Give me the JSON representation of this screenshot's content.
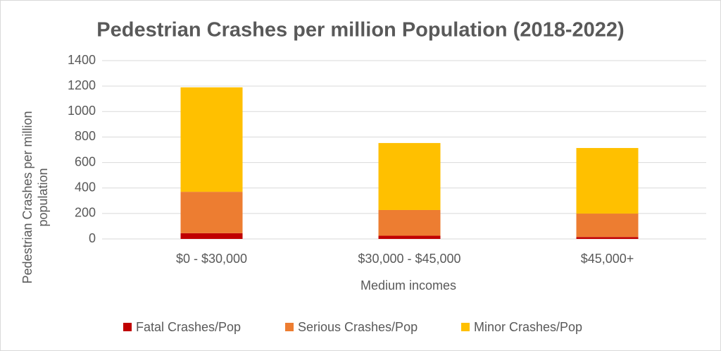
{
  "chart_data": {
    "type": "stacked_bar",
    "title": "Pedestrian Crashes per million Population (2018-2022)",
    "y_label": [
      "Pedestrian Crashes  per million",
      "population"
    ],
    "x_label": "Medium incomes",
    "categories": [
      "$0 - $30,000",
      "$30,000 - $45,000",
      "$45,000+"
    ],
    "series": [
      {
        "name": "Fatal Crashes/Pop",
        "color": "#c00000",
        "values": [
          45,
          25,
          15
        ]
      },
      {
        "name": "Serious Crashes/Pop",
        "color": "#ed7d31",
        "values": [
          325,
          202,
          184
        ]
      },
      {
        "name": "Minor Crashes/Pop",
        "color": "#ffc000",
        "values": [
          820,
          526,
          515
        ]
      }
    ],
    "ylim": [
      0,
      1400
    ],
    "yticks": [
      0,
      200,
      400,
      600,
      800,
      1000,
      1200,
      1400
    ],
    "grid": true,
    "legend": "bottom"
  }
}
